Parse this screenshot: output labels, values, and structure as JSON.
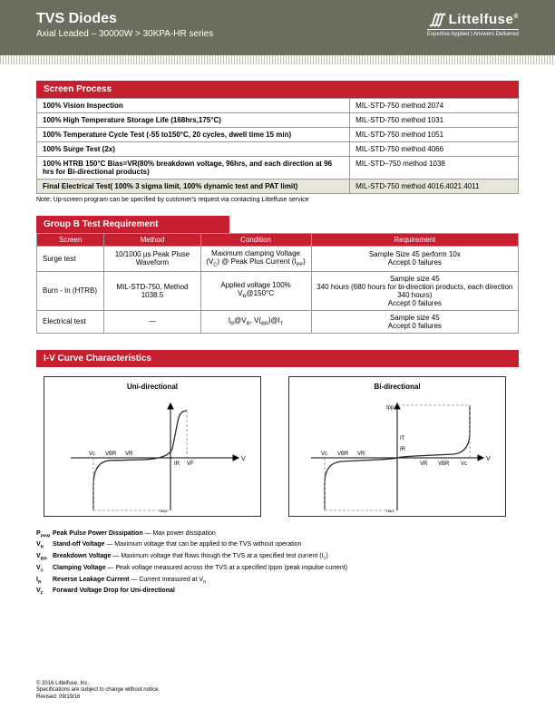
{
  "header": {
    "title": "TVS Diodes",
    "subtitle": "Axial Leaded – 30000W  >  30KPA-HR series",
    "logo_name": "Littelfuse",
    "logo_tag": "Expertise Applied | Answers Delivered"
  },
  "screen_process": {
    "heading": "Screen Process",
    "rows": [
      {
        "l": "100% Vision Inspection",
        "r": "MIL-STD-750 method 2074"
      },
      {
        "l": "100% High Temperature Storage Life (168hrs,175°C)",
        "r": "MIL-STD-750 method 1031"
      },
      {
        "l": "100% Temperature Cycle Test (-55 to150°C, 20 cycles, dwell time 15 min)",
        "r": "MIL-STD-750 method 1051"
      },
      {
        "l": "100% Surge Test (2x)",
        "r": "MIL-STD-750 method 4066"
      },
      {
        "l": "100% HTRB 150°C Bias=VR(80% breakdown voltage, 96hrs, and each direction at 96 hrs for Bi-directional products)",
        "r": "MIL-STD–750 method 1038"
      },
      {
        "l": "Final Electrical Test( 100% 3 sigma limit, 100% dynamic test and PAT limit)",
        "r": "MIL-STD-750 method 4016.4021.4011"
      }
    ],
    "note": "Note: Up-screen program can be specified by customer's request via contacting Littelfuse service"
  },
  "group_b": {
    "heading": "Group B Test Requirement",
    "headers": [
      "Screen",
      "Method",
      "Condition",
      "Requirement"
    ],
    "rows": [
      {
        "c1": "Surge test",
        "c2": "10/1000 µs Peak Pluse Waveform",
        "c3": "Maximum clamping Voltage (V_C) @ Peak Plus Current (I_PP)",
        "c4": "Sample Size 45  perform 10x\nAccept 0 failures"
      },
      {
        "c1": "Burn - In (HTRB)",
        "c2": "MIL-STD-750, Method 1038.5",
        "c3": "Applied voltage 100% V_R@150°C",
        "c4": "Sample size 45\n340 hours (680 hours for bi-direction products, each direction 340 hours)\nAccept 0 failures"
      },
      {
        "c1": "Electrical test",
        "c2": "—",
        "c3": "I_R@V_R, V(_BR)@I_T",
        "c4": "Sample size 45\nAccept 0 failures"
      }
    ]
  },
  "iv": {
    "heading": "I-V Curve Characteristics",
    "chart1_title": "Uni-directional",
    "chart2_title": "Bi-directional",
    "labels": {
      "vc": "Vc",
      "vbr": "VBR",
      "vr": "VR",
      "ir": "IR",
      "vf": "VF",
      "it": "IT",
      "ipp": "Ipp",
      "v": "V",
      "i": "I"
    },
    "style": {
      "axis_color": "#000000",
      "curve_color": "#2a2a2a",
      "dash_color": "#888888",
      "stroke_width": 1,
      "dash_pattern": "3,2"
    }
  },
  "legend": [
    {
      "sym": "P_PPM",
      "term": "Peak Pulse Power Dissipation",
      "desc": " — Max power dissipation"
    },
    {
      "sym": "V_R",
      "term": "Stand-off Voltage",
      "desc": " — Maximum voltage that can be applied to the TVS without operation"
    },
    {
      "sym": "V_BR",
      "term": "Breakdown Voltage",
      "desc": " —  Maximum voltage that flows though the TVS at a specified test current (I_T)"
    },
    {
      "sym": "V_C",
      "term": "Clamping Voltage",
      "desc": " — Peak voltage measured across the TVS at a specified Ippm (peak impulse current)"
    },
    {
      "sym": "I_R",
      "term": "Reverse Leakage Current",
      "desc": " — Current measured at V_R"
    },
    {
      "sym": "V_F",
      "term": "Forward Voltage Drop for Uni-directional",
      "desc": ""
    }
  ],
  "footer": {
    "l1": "© 2016 Littelfuse, Inc.",
    "l2": "Specifications are subject to change without notice.",
    "l3": "Revised: 09/19/16"
  }
}
